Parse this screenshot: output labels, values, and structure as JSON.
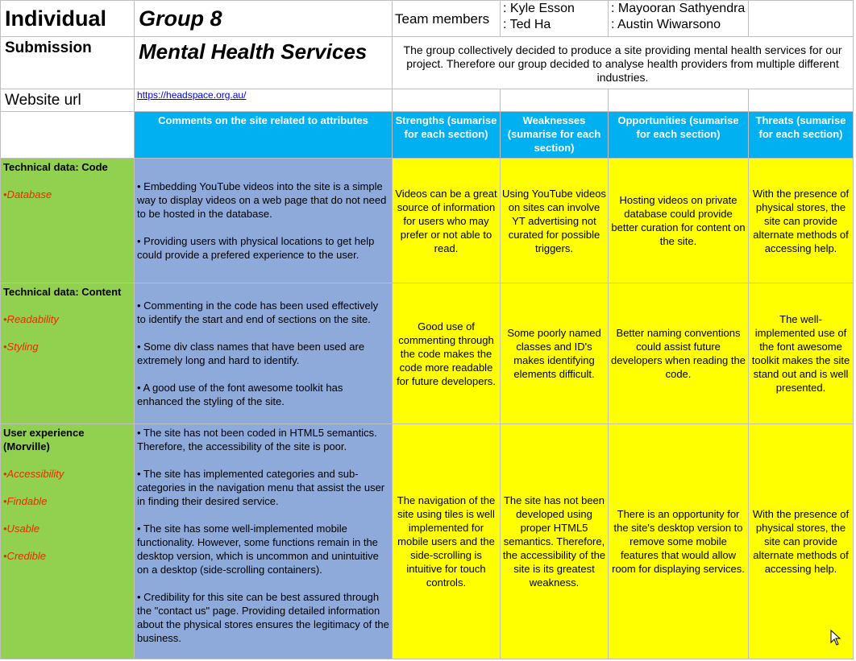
{
  "header": {
    "individual": "Individual",
    "group": "Group 8",
    "team_label": "Team members",
    "members": [
      ": Kyle Esson",
      ": Mayooran Sathyendra",
      ": Ted Ha",
      ": Austin Wiwarsono"
    ],
    "submission": "Submission",
    "project_title": "Mental Health Services",
    "description": "The group collectively decided to produce a site providing mental health services for our project. Therefore our group decided to analyse health providers from multiple different industries.",
    "website_label": "Website url",
    "website_url": "https://headspace.org.au/"
  },
  "columns": {
    "comments": "Comments on the site related to attributes",
    "strengths": "Strengths (sumarise for each section)",
    "weaknesses": "Weaknesses (sumarise for each section)",
    "opportunities": "Opportunities (sumarise for each section)",
    "threats": "Threats (sumarise for each section)"
  },
  "rows": [
    {
      "category": "Technical data: Code",
      "attributes": [
        "•Database"
      ],
      "comments": [
        "• Embedding YouTube videos into the site is a simple way to display videos on a web page that do not need to be hosted in the database.",
        "• Providing users with physical locations to get help could provide a prefered experience to the user."
      ],
      "strengths": "Videos can be a great source of information for users who may prefer or not able to read.",
      "weaknesses": "Using YouTube videos on sites can involve YT advertising not curated for possible triggers.",
      "opportunities": "Hosting videos on private database could provide better curation for content on the site.",
      "threats": "With the presence of physical stores, the site can provide alternate methods of accessing help."
    },
    {
      "category": "Technical data: Content",
      "attributes": [
        "•Readability",
        "•Styling"
      ],
      "comments": [
        "• Commenting in the code has been used effectively to identify the start and end of sections on the site.",
        "• Some div class names that have been used are extremely long and hard to identify.",
        "• A good use of the font awesome toolkit has enhanced the styling of the site."
      ],
      "strengths": "Good use of commenting through the code makes the code more readable for future developers.",
      "weaknesses": "Some poorly named classes and ID's makes identifying elements difficult.",
      "opportunities": "Better naming conventions could assist future developers when reading the code.",
      "threats": "The well-implemented use of the font awesome toolkit makes the site stand out and is well presented."
    },
    {
      "category": "User experience (Morville)",
      "attributes": [
        "•Accessibility",
        "•Findable",
        "•Usable",
        "•Credible"
      ],
      "comments": [
        "• The site has not been coded in HTML5 semantics. Therefore, the accessibility of the site is poor.",
        "• The site has implemented categories and sub-categories in the navigation menu that assist the user in finding their desired service.",
        "• The site has some well-implemented mobile functionality. However, some functions remain in the desktop version, which is uncommon and unintuitive on a desktop (side-scrolling containers).",
        "• Credibility for this site can be best assured through the \"contact us\" page. Providing detailed information about the physical stores ensures the legitimacy of the business."
      ],
      "strengths": "The navigation of the site using tiles is well implemented for mobile users and the side-scrolling is intuitive for touch controls.",
      "weaknesses": "The site has not been developed using proper HTML5 semantics. Therefore, the accessibility of the site is its greatest weakness.",
      "opportunities": "There is an opportunity for the site's desktop version to remove some mobile features that would allow room for displaying services.",
      "threats": "With the presence of physical stores, the site can provide alternate methods of accessing help."
    }
  ],
  "colors": {
    "header_blue": "#00b0f0",
    "category_green": "#92d050",
    "comment_blue": "#8eaadb",
    "swot_yellow": "#ffff00",
    "attribute_red": "#e03000"
  },
  "icons": {
    "cursor": "mouse-pointer-icon"
  }
}
